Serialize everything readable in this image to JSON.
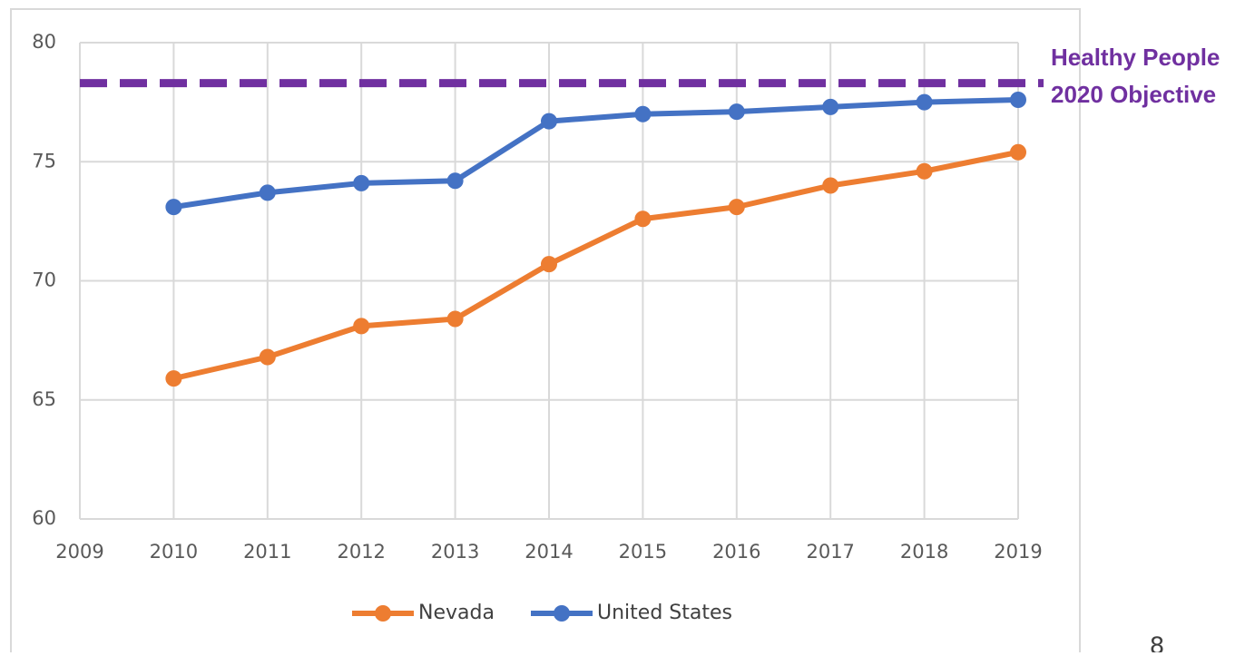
{
  "chart_data": {
    "type": "line",
    "x": [
      2010,
      2011,
      2012,
      2013,
      2014,
      2015,
      2016,
      2017,
      2018,
      2019
    ],
    "series": [
      {
        "name": "Nevada",
        "color": "#ed7d31",
        "values": [
          65.9,
          66.8,
          68.1,
          68.4,
          70.7,
          72.6,
          73.1,
          74.0,
          74.6,
          75.4
        ]
      },
      {
        "name": "United States",
        "color": "#4472c4",
        "values": [
          73.1,
          73.7,
          74.1,
          74.2,
          76.7,
          77.0,
          77.1,
          77.3,
          77.5,
          77.6
        ]
      }
    ],
    "xlim": [
      2009,
      2019
    ],
    "xticks": [
      2009,
      2010,
      2011,
      2012,
      2013,
      2014,
      2015,
      2016,
      2017,
      2018,
      2019
    ],
    "ylim": [
      60,
      80
    ],
    "yticks": [
      60,
      65,
      70,
      75,
      80
    ],
    "grid": true,
    "legend": "bottom",
    "annotation": {
      "lines": [
        "Healthy People",
        "2020 Objective"
      ],
      "value": 78.3,
      "color": "#7030a0"
    }
  },
  "page_number": "8"
}
